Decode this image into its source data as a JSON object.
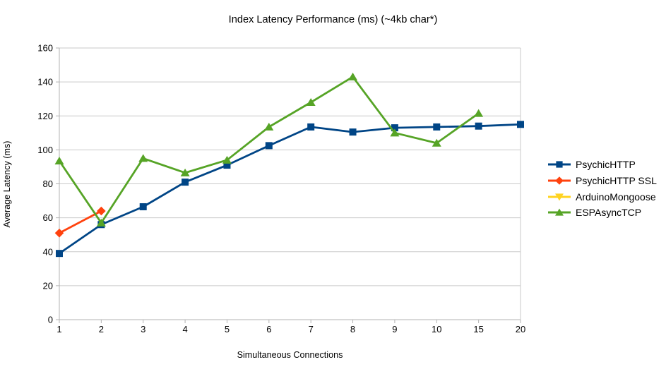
{
  "title": "Index Latency Performance (ms) (~4kb char*)",
  "chart_data": {
    "type": "line",
    "title": "Index Latency Performance (ms) (~4kb char*)",
    "xlabel": "Simultaneous Connections",
    "ylabel": "Average Latency (ms)",
    "categories": [
      "1",
      "2",
      "3",
      "4",
      "5",
      "6",
      "7",
      "8",
      "9",
      "10",
      "15",
      "20"
    ],
    "ylim": [
      0,
      160
    ],
    "ytick_step": 20,
    "ytick_labels": [
      "0",
      "20",
      "40",
      "60",
      "80",
      "100",
      "120",
      "140",
      "160"
    ],
    "grid": true,
    "legend_position": "right",
    "series": [
      {
        "name": "PsychicHTTP",
        "color": "#004586",
        "marker": "square",
        "values": [
          39,
          56,
          66.5,
          81,
          91,
          102.5,
          113.5,
          110.5,
          113,
          113.5,
          114,
          115
        ]
      },
      {
        "name": "PsychicHTTP SSL",
        "color": "#FF420E",
        "marker": "diamond",
        "values": [
          51,
          64,
          null,
          null,
          null,
          null,
          null,
          null,
          null,
          null,
          null,
          null
        ]
      },
      {
        "name": "ArduinoMongoose",
        "color": "#FFD320",
        "marker": "triangle-down",
        "values": [
          null,
          null,
          null,
          null,
          null,
          null,
          null,
          null,
          null,
          null,
          null,
          null
        ]
      },
      {
        "name": "ESPAsyncTCP",
        "color": "#56A426",
        "marker": "triangle-up",
        "values": [
          93.5,
          57,
          95,
          86.5,
          94,
          113.5,
          128,
          143,
          110,
          104,
          121.5,
          null
        ]
      }
    ],
    "colors": {
      "grid": "#C9C9C9",
      "axis": "#B3B3B3",
      "text": "#000000",
      "background": "#FFFFFF"
    }
  }
}
